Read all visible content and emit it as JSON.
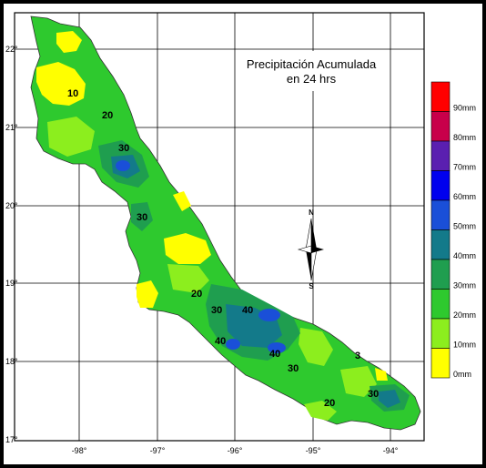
{
  "map": {
    "title_line1": "Precipitación Acumulada",
    "title_line2": "en 24 hrs",
    "lat_labels": [
      "22°",
      "21°",
      "20°",
      "19°",
      "18°",
      "17°"
    ],
    "lon_labels": [
      "-98°",
      "-97°",
      "-96°",
      "-95°",
      "-94°"
    ],
    "compass": {
      "north": "N",
      "south": "S"
    },
    "isohyet_labels": [
      "10",
      "20",
      "30",
      "30",
      "20",
      "30",
      "40",
      "40",
      "40",
      "30",
      "20",
      "30",
      "3"
    ],
    "legend": [
      {
        "label": "90mm",
        "color": "#ff0000"
      },
      {
        "label": "80mm",
        "color": "#c8004a"
      },
      {
        "label": "70mm",
        "color": "#5a1fb0"
      },
      {
        "label": "60mm",
        "color": "#0000ee"
      },
      {
        "label": "50mm",
        "color": "#1a4fd8"
      },
      {
        "label": "40mm",
        "color": "#137a8a"
      },
      {
        "label": "30mm",
        "color": "#1f9e4f"
      },
      {
        "label": "20mm",
        "color": "#2ec92e"
      },
      {
        "label": "10mm",
        "color": "#8cee1e"
      },
      {
        "label": "0mm",
        "color": "#ffff00"
      }
    ]
  }
}
